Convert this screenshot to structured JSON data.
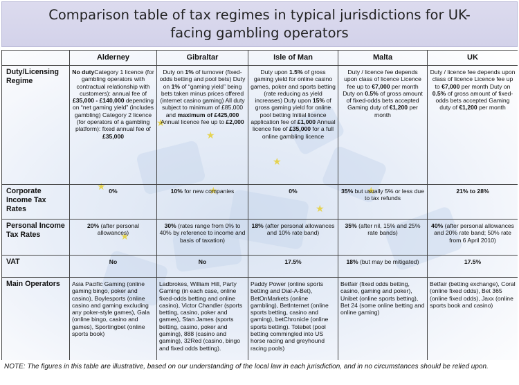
{
  "title": "Comparison table of tax regimes in typical jurisdictions for UK-facing gambling operators",
  "columns": [
    "Alderney",
    "Gibraltar",
    "Isle of Man",
    "Malta",
    "UK"
  ],
  "rows": [
    {
      "label": "Duty/Licensing Regime",
      "cells": [
        [
          {
            "t": "No duty",
            "b": true
          },
          {
            "t": "Category 1 licence (for gambling operators with contractual relationship with customers): annual fee of "
          },
          {
            "t": "£35,000 - £140,000",
            "b": true
          },
          {
            "t": " depending on “net gaming yield” (includes gambling) Category 2 licence (for operators of a gambling platform): fixed annual fee of "
          },
          {
            "t": "£35,000",
            "b": true
          }
        ],
        [
          {
            "t": "Duty on "
          },
          {
            "t": "1%",
            "b": true
          },
          {
            "t": " of turnover (fixed-odds betting and pool bets) Duty on "
          },
          {
            "t": "1%",
            "b": true
          },
          {
            "t": " of “gaming yield” being bets taken minus prices offered (internet casino gaming) All duty subject to minimum of £85,000 and "
          },
          {
            "t": "maximum of £425,000",
            "b": true
          },
          {
            "t": " Annual licence fee up to "
          },
          {
            "t": "£2,000",
            "b": true
          }
        ],
        [
          {
            "t": "Duty upon "
          },
          {
            "t": "1.5%",
            "b": true
          },
          {
            "t": " of gross gaming yield for online casino games, poker and sports betting (rate reducing as yield increases) Duty upon "
          },
          {
            "t": "15%",
            "b": true
          },
          {
            "t": " of gross gaming yield for online pool betting Initial licence application fee of "
          },
          {
            "t": "£1,000",
            "b": true
          },
          {
            "t": " Annual licence fee of "
          },
          {
            "t": "£35,000",
            "b": true
          },
          {
            "t": " for a full online gambling licence"
          }
        ],
        [
          {
            "t": "Duty / licence fee depends upon class of licence Licence fee up to "
          },
          {
            "t": "€7,000",
            "b": true
          },
          {
            "t": " per month Duty on "
          },
          {
            "t": "0.5%",
            "b": true
          },
          {
            "t": " of gross amount of fixed-odds bets accepted Gaming duty of "
          },
          {
            "t": "€1,200",
            "b": true
          },
          {
            "t": " per month"
          }
        ],
        [
          {
            "t": "Duty / licence fee depends upon class of licence Licence fee up to "
          },
          {
            "t": "€7,000",
            "b": true
          },
          {
            "t": " per month Duty on "
          },
          {
            "t": "0.5%",
            "b": true
          },
          {
            "t": " of gross amount of fixed-odds bets accepted Gaming duty of "
          },
          {
            "t": "€1,200",
            "b": true
          },
          {
            "t": " per month"
          }
        ]
      ]
    },
    {
      "label": "Corporate Income Tax Rates",
      "cells": [
        [
          {
            "t": "0%",
            "b": true
          }
        ],
        [
          {
            "t": "10%",
            "b": true
          },
          {
            "t": " for new companies"
          }
        ],
        [
          {
            "t": "0%",
            "b": true
          }
        ],
        [
          {
            "t": "35%",
            "b": true
          },
          {
            "t": " but usually 5% or less due to tax refunds"
          }
        ],
        [
          {
            "t": "21% to 28%",
            "b": true
          }
        ]
      ]
    },
    {
      "label": "Personal Income Tax Rates",
      "cells": [
        [
          {
            "t": "20%",
            "b": true
          },
          {
            "t": " (after personal allowances)"
          }
        ],
        [
          {
            "t": "30%",
            "b": true
          },
          {
            "t": " (rates range from 0% to 40% by reference to income and basis of taxation)"
          }
        ],
        [
          {
            "t": "18%",
            "b": true
          },
          {
            "t": " (after personal allowances and 10% rate band)"
          }
        ],
        [
          {
            "t": "35%",
            "b": true
          },
          {
            "t": " (after nil, 15% and 25% rate bands)"
          }
        ],
        [
          {
            "t": "40%",
            "b": true
          },
          {
            "t": " (after personal allowances and 20% rate band; 50% rate from 6 April 2010)"
          }
        ]
      ]
    },
    {
      "label": "VAT",
      "cells": [
        [
          {
            "t": "No",
            "b": true
          }
        ],
        [
          {
            "t": "No",
            "b": true
          }
        ],
        [
          {
            "t": "17.5%",
            "b": true
          }
        ],
        [
          {
            "t": "18%",
            "b": true
          },
          {
            "t": " (but may be mitigated)"
          }
        ],
        [
          {
            "t": "17.5%",
            "b": true
          }
        ]
      ]
    },
    {
      "label": "Main Operators",
      "cells": [
        [
          {
            "t": "Asia Pacific Gaming (online gaming bingo, poker and casino), Boylesports (online casino and gaming excluding any poker-style games), Gala (online bingo, casino and games), Sportingbet (online sports book)"
          }
        ],
        [
          {
            "t": "Ladbrokes, William Hill, Party Gaming (in each case, online fixed-odds betting and online casino), Victor Chandler (sports betting, casino, poker and games), Stan James (sports betting, casino, poker and gaming), 888 (casino and gaming), 32Red (casino, bingo and fixed odds betting)."
          }
        ],
        [
          {
            "t": "Paddy Power (online sports betting and Dial-A-Bet), BetOnMarkets (online gambling), BetInternet (online sports betting, casino and gaming), betChronicle (online sports betting). Totebet (pool betting commingled into US horse racing and greyhound racing pools)"
          }
        ],
        [
          {
            "t": "Betfair (fixed odds betting, casino, gaming and poker), Unibet (online sports betting), Bet 24 (some online betting and online gaming)"
          }
        ],
        [
          {
            "t": "Betfair (betting exchange), Coral (online fixed odds), Bet 365 (online fixed odds), Jaxx (online sports book and casino)"
          }
        ]
      ]
    }
  ],
  "note": "NOTE:  The figures in this table are illustrative, based on our understanding of the local law in each jurisdiction, and in no circumstances should be relied upon.",
  "colors": {
    "title_background": "#d6d5ec",
    "background_tint": "#d9e3f2",
    "star": "#e6cf33",
    "border": "#444444"
  }
}
